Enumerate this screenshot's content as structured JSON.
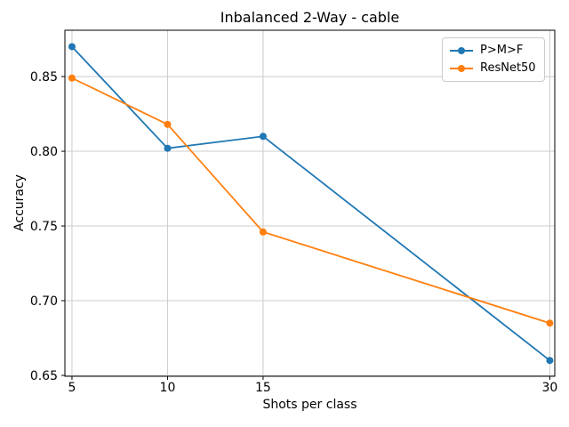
{
  "chart_data": {
    "type": "line",
    "title": "Inbalanced 2-Way - cable",
    "xlabel": "Shots per class",
    "ylabel": "Accuracy",
    "x": [
      5,
      10,
      15,
      30
    ],
    "series": [
      {
        "name": "P>M>F",
        "color": "#1f77b4",
        "values": [
          0.87,
          0.802,
          0.81,
          0.66
        ]
      },
      {
        "name": "ResNet50",
        "color": "#ff7f0e",
        "values": [
          0.849,
          0.818,
          0.746,
          0.685
        ]
      }
    ],
    "xticks": [
      "5",
      "10",
      "15",
      "30"
    ],
    "yticks": [
      "0.65",
      "0.70",
      "0.75",
      "0.80",
      "0.85"
    ],
    "xlim": [
      4.63,
      30.26
    ],
    "ylim": [
      0.6494,
      0.881
    ],
    "grid": true,
    "legend_position": "upper right",
    "marker": "circle",
    "colors": {
      "grid": "#cccccc",
      "axis_frame": "#000000",
      "tick_label": "#000000",
      "background": "#ffffff"
    }
  }
}
